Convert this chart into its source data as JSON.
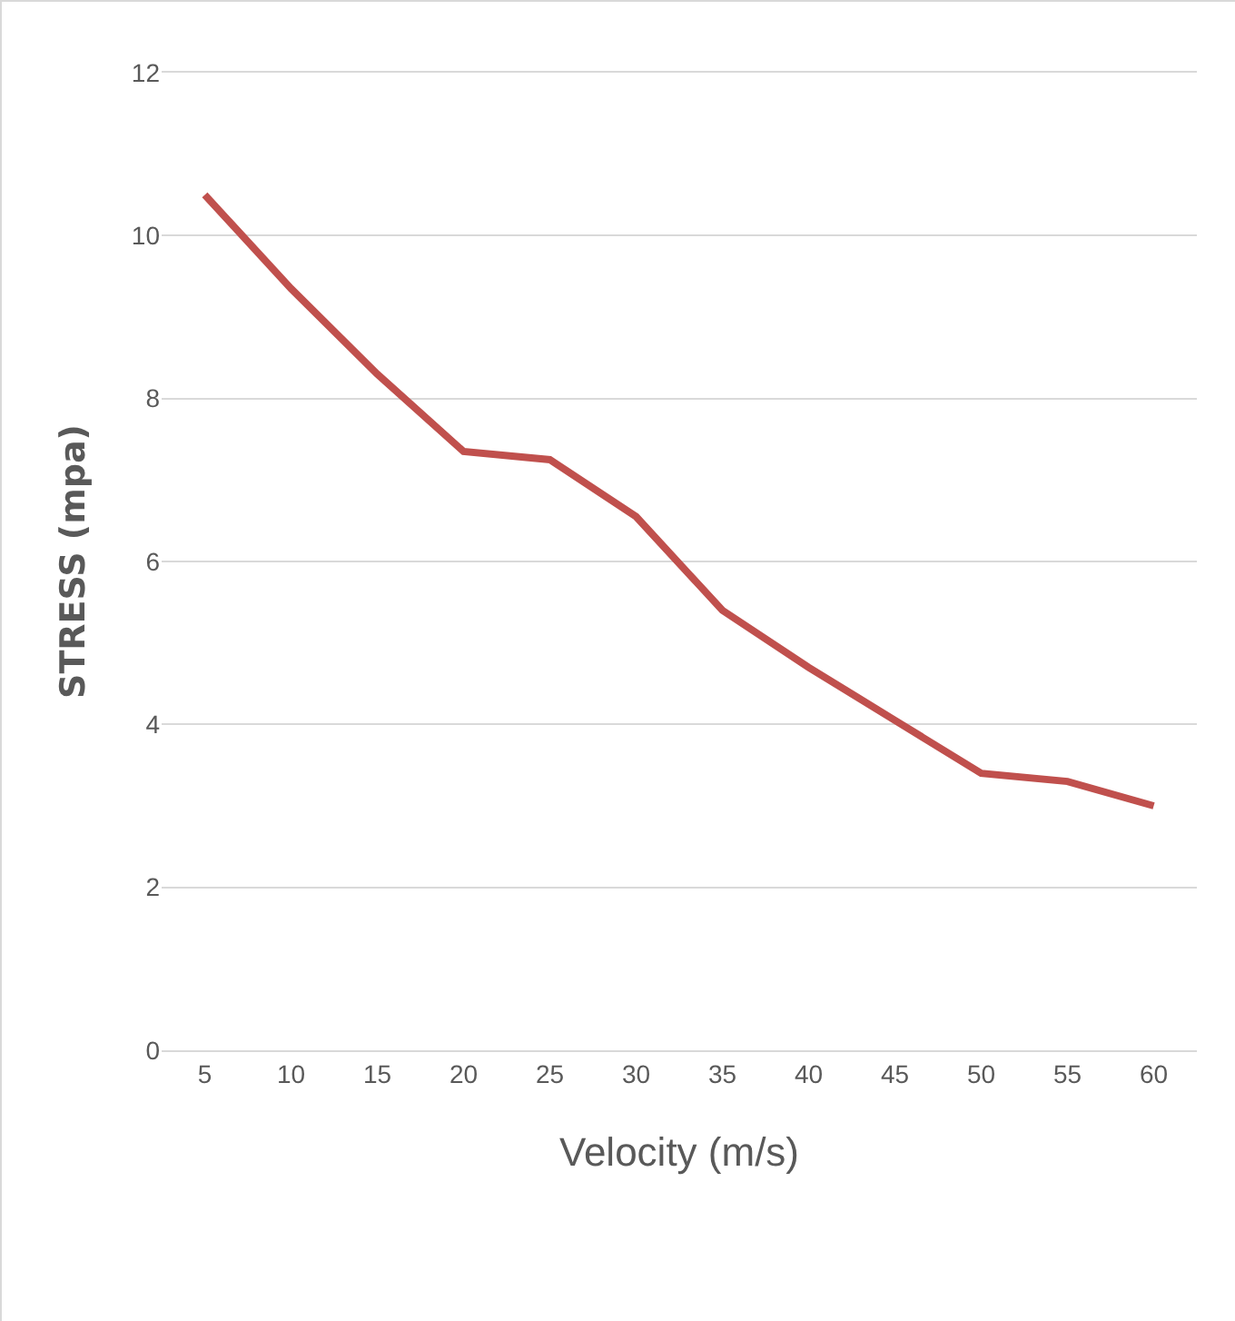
{
  "chart_data": {
    "type": "line",
    "xlabel": "Velocity (m/s)",
    "ylabel": "STRESS (mpa)",
    "categories": [
      "5",
      "10",
      "15",
      "20",
      "25",
      "30",
      "35",
      "40",
      "45",
      "50",
      "55",
      "60"
    ],
    "series": [
      {
        "color": "#c0504d",
        "values": [
          10.5,
          9.35,
          8.3,
          7.35,
          7.25,
          6.55,
          5.4,
          4.7,
          4.05,
          3.4,
          3.3,
          3.0
        ]
      }
    ],
    "ylim": [
      0,
      12
    ],
    "yticks": [
      0,
      2,
      4,
      6,
      8,
      10,
      12
    ],
    "grid": "y",
    "marker": "none",
    "line_style": "solid"
  }
}
